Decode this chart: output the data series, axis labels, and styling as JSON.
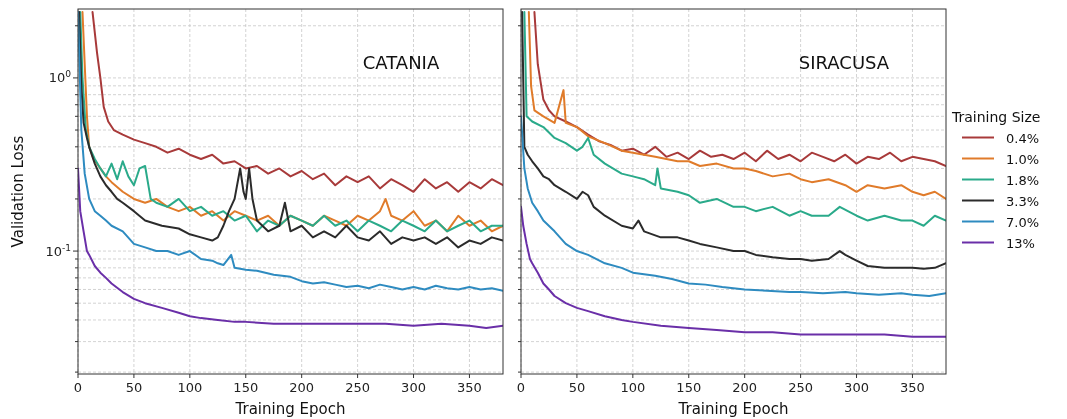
{
  "chart_data": [
    {
      "type": "line",
      "title": "CATANIA",
      "xlabel": "Training Epoch",
      "ylabel": "Validation Loss",
      "log": "y",
      "grid": true,
      "line_style": "solid",
      "xlim": [
        0,
        380
      ],
      "xticks": [
        0,
        50,
        100,
        150,
        200,
        250,
        300,
        350
      ],
      "ylim": [
        0.0195,
        2.5
      ],
      "yticks": [
        {
          "value": 0.02,
          "label": null
        },
        {
          "value": 0.03,
          "label": null
        },
        {
          "value": 0.04,
          "label": null
        },
        {
          "value": 0.05,
          "label": null
        },
        {
          "value": 0.06,
          "label": null
        },
        {
          "value": 0.07,
          "label": null
        },
        {
          "value": 0.08,
          "label": null
        },
        {
          "value": 0.09,
          "label": null
        },
        {
          "value": 0.1,
          "label": "10$^{-1}$"
        },
        {
          "value": 0.2,
          "label": null
        },
        {
          "value": 0.3,
          "label": null
        },
        {
          "value": 0.4,
          "label": null
        },
        {
          "value": 0.5,
          "label": null
        },
        {
          "value": 0.6,
          "label": null
        },
        {
          "value": 0.7,
          "label": null
        },
        {
          "value": 0.8,
          "label": null
        },
        {
          "value": 0.9,
          "label": null
        },
        {
          "value": 1,
          "label": "10$^{0}$"
        },
        {
          "value": 2,
          "label": null
        }
      ],
      "series": [
        {
          "color": "#a83a3a",
          "x": [
            13,
            17,
            20,
            23,
            27,
            32,
            40,
            50,
            60,
            70,
            80,
            90,
            100,
            110,
            120,
            130,
            140,
            150,
            160,
            170,
            180,
            190,
            200,
            210,
            220,
            230,
            240,
            250,
            260,
            270,
            280,
            290,
            300,
            310,
            320,
            330,
            340,
            350,
            360,
            370,
            380
          ],
          "values": [
            2.4,
            1.4,
            1.0,
            0.68,
            0.56,
            0.5,
            0.47,
            0.44,
            0.42,
            0.4,
            0.37,
            0.39,
            0.36,
            0.34,
            0.36,
            0.32,
            0.33,
            0.3,
            0.31,
            0.28,
            0.3,
            0.27,
            0.29,
            0.26,
            0.28,
            0.24,
            0.27,
            0.25,
            0.27,
            0.23,
            0.26,
            0.24,
            0.22,
            0.26,
            0.23,
            0.25,
            0.22,
            0.25,
            0.23,
            0.26,
            0.24
          ]
        },
        {
          "color": "#e07b2a",
          "x": [
            4,
            6,
            8,
            10,
            14,
            20,
            25,
            30,
            40,
            50,
            60,
            70,
            80,
            90,
            100,
            110,
            120,
            130,
            140,
            150,
            160,
            170,
            180,
            190,
            200,
            210,
            220,
            230,
            240,
            250,
            260,
            270,
            275,
            280,
            290,
            300,
            310,
            320,
            330,
            340,
            350,
            360,
            370,
            380
          ],
          "values": [
            2.4,
            1.2,
            0.6,
            0.4,
            0.34,
            0.3,
            0.27,
            0.25,
            0.22,
            0.2,
            0.19,
            0.2,
            0.18,
            0.17,
            0.18,
            0.16,
            0.17,
            0.15,
            0.17,
            0.16,
            0.15,
            0.16,
            0.14,
            0.16,
            0.15,
            0.14,
            0.16,
            0.15,
            0.14,
            0.16,
            0.15,
            0.17,
            0.2,
            0.16,
            0.15,
            0.17,
            0.14,
            0.15,
            0.13,
            0.16,
            0.14,
            0.15,
            0.13,
            0.14
          ]
        },
        {
          "color": "#2aaa8a",
          "x": [
            2,
            4,
            7,
            10,
            15,
            20,
            25,
            30,
            35,
            40,
            45,
            50,
            55,
            60,
            65,
            70,
            80,
            90,
            100,
            110,
            120,
            130,
            140,
            150,
            160,
            170,
            180,
            190,
            200,
            210,
            220,
            230,
            240,
            250,
            260,
            270,
            280,
            290,
            300,
            310,
            320,
            330,
            340,
            350,
            360,
            370,
            380
          ],
          "values": [
            2.4,
            1.0,
            0.5,
            0.4,
            0.34,
            0.3,
            0.27,
            0.32,
            0.26,
            0.33,
            0.27,
            0.24,
            0.3,
            0.31,
            0.2,
            0.19,
            0.18,
            0.2,
            0.17,
            0.18,
            0.16,
            0.17,
            0.15,
            0.16,
            0.13,
            0.15,
            0.14,
            0.16,
            0.15,
            0.14,
            0.16,
            0.14,
            0.15,
            0.13,
            0.15,
            0.14,
            0.13,
            0.15,
            0.14,
            0.13,
            0.15,
            0.13,
            0.14,
            0.15,
            0.13,
            0.14,
            0.14
          ]
        },
        {
          "color": "#2b2b2b",
          "x": [
            1,
            3,
            5,
            8,
            10,
            15,
            20,
            25,
            30,
            35,
            40,
            50,
            60,
            75,
            90,
            100,
            110,
            120,
            125,
            130,
            135,
            140,
            145,
            148,
            150,
            153,
            156,
            160,
            170,
            180,
            185,
            190,
            200,
            210,
            220,
            230,
            240,
            250,
            260,
            270,
            280,
            290,
            300,
            310,
            320,
            330,
            340,
            350,
            360,
            370,
            380
          ],
          "values": [
            2.4,
            0.9,
            0.55,
            0.45,
            0.4,
            0.32,
            0.27,
            0.24,
            0.22,
            0.2,
            0.19,
            0.17,
            0.15,
            0.14,
            0.135,
            0.125,
            0.12,
            0.115,
            0.12,
            0.14,
            0.17,
            0.2,
            0.3,
            0.22,
            0.2,
            0.3,
            0.2,
            0.15,
            0.13,
            0.14,
            0.19,
            0.13,
            0.14,
            0.12,
            0.13,
            0.12,
            0.14,
            0.12,
            0.115,
            0.13,
            0.11,
            0.12,
            0.115,
            0.12,
            0.11,
            0.12,
            0.105,
            0.115,
            0.11,
            0.12,
            0.115
          ]
        },
        {
          "color": "#2e8bc0",
          "x": [
            0,
            3,
            6,
            10,
            15,
            20,
            25,
            30,
            40,
            50,
            60,
            70,
            80,
            90,
            100,
            110,
            120,
            125,
            130,
            137,
            140,
            150,
            160,
            175,
            190,
            200,
            210,
            220,
            230,
            240,
            250,
            260,
            270,
            280,
            290,
            300,
            310,
            320,
            330,
            340,
            350,
            360,
            370,
            380
          ],
          "values": [
            2.4,
            0.5,
            0.28,
            0.2,
            0.17,
            0.16,
            0.15,
            0.14,
            0.13,
            0.11,
            0.105,
            0.1,
            0.1,
            0.095,
            0.1,
            0.09,
            0.088,
            0.085,
            0.083,
            0.095,
            0.08,
            0.078,
            0.077,
            0.073,
            0.071,
            0.067,
            0.065,
            0.066,
            0.064,
            0.062,
            0.063,
            0.061,
            0.064,
            0.062,
            0.06,
            0.062,
            0.06,
            0.063,
            0.061,
            0.06,
            0.062,
            0.06,
            0.061,
            0.059
          ]
        },
        {
          "color": "#6a2fa8",
          "x": [
            0,
            2,
            5,
            8,
            10,
            15,
            20,
            25,
            30,
            40,
            50,
            60,
            75,
            90,
            100,
            110,
            125,
            140,
            150,
            175,
            200,
            225,
            250,
            275,
            300,
            325,
            350,
            365,
            380
          ],
          "values": [
            0.3,
            0.17,
            0.13,
            0.1,
            0.095,
            0.082,
            0.075,
            0.07,
            0.065,
            0.058,
            0.053,
            0.05,
            0.047,
            0.044,
            0.042,
            0.041,
            0.04,
            0.039,
            0.039,
            0.038,
            0.038,
            0.038,
            0.038,
            0.038,
            0.037,
            0.038,
            0.037,
            0.036,
            0.037
          ]
        }
      ]
    },
    {
      "type": "line",
      "title": "SIRACUSA",
      "xlabel": "Training Epoch",
      "log": "y",
      "grid": true,
      "line_style": "solid",
      "tick_labels": "x",
      "legend": "right",
      "legend_title": "Training Size",
      "xlim": [
        0,
        380
      ],
      "xticks": [
        0,
        50,
        100,
        150,
        200,
        250,
        300,
        350
      ],
      "ylim": [
        0.0195,
        2.5
      ],
      "yticks": [
        {
          "value": 0.02,
          "label": null
        },
        {
          "value": 0.03,
          "label": null
        },
        {
          "value": 0.04,
          "label": null
        },
        {
          "value": 0.05,
          "label": null
        },
        {
          "value": 0.06,
          "label": null
        },
        {
          "value": 0.07,
          "label": null
        },
        {
          "value": 0.08,
          "label": null
        },
        {
          "value": 0.09,
          "label": null
        },
        {
          "value": 0.1,
          "label": null
        },
        {
          "value": 0.2,
          "label": null
        },
        {
          "value": 0.3,
          "label": null
        },
        {
          "value": 0.4,
          "label": null
        },
        {
          "value": 0.5,
          "label": null
        },
        {
          "value": 0.6,
          "label": null
        },
        {
          "value": 0.7,
          "label": null
        },
        {
          "value": 0.8,
          "label": null
        },
        {
          "value": 0.9,
          "label": null
        },
        {
          "value": 1,
          "label": null
        },
        {
          "value": 2,
          "label": null
        }
      ],
      "series": [
        {
          "name": "0.4%",
          "color": "#a83a3a",
          "x": [
            12,
            15,
            20,
            25,
            30,
            40,
            50,
            60,
            70,
            80,
            90,
            100,
            110,
            120,
            130,
            140,
            150,
            160,
            170,
            180,
            190,
            200,
            210,
            220,
            230,
            240,
            250,
            260,
            270,
            280,
            290,
            300,
            310,
            320,
            330,
            340,
            350,
            360,
            370,
            380
          ],
          "values": [
            2.4,
            1.2,
            0.75,
            0.65,
            0.6,
            0.56,
            0.52,
            0.47,
            0.43,
            0.41,
            0.38,
            0.39,
            0.36,
            0.4,
            0.35,
            0.37,
            0.34,
            0.38,
            0.35,
            0.36,
            0.34,
            0.37,
            0.33,
            0.38,
            0.34,
            0.36,
            0.33,
            0.37,
            0.35,
            0.33,
            0.36,
            0.32,
            0.35,
            0.34,
            0.37,
            0.33,
            0.35,
            0.34,
            0.33,
            0.31
          ]
        },
        {
          "name": "1.0%",
          "color": "#e07b2a",
          "x": [
            7,
            9,
            12,
            20,
            30,
            38,
            40,
            50,
            60,
            75,
            90,
            100,
            110,
            120,
            130,
            140,
            150,
            160,
            175,
            190,
            200,
            210,
            225,
            240,
            250,
            260,
            275,
            290,
            300,
            310,
            325,
            340,
            350,
            360,
            370,
            380
          ],
          "values": [
            2.4,
            0.9,
            0.65,
            0.6,
            0.55,
            0.85,
            0.55,
            0.52,
            0.46,
            0.42,
            0.38,
            0.37,
            0.36,
            0.35,
            0.34,
            0.33,
            0.33,
            0.31,
            0.32,
            0.3,
            0.3,
            0.29,
            0.27,
            0.28,
            0.26,
            0.25,
            0.26,
            0.24,
            0.22,
            0.24,
            0.23,
            0.24,
            0.22,
            0.21,
            0.22,
            0.2
          ]
        },
        {
          "name": "1.8%",
          "color": "#2aaa8a",
          "x": [
            3,
            5,
            10,
            20,
            30,
            40,
            50,
            55,
            60,
            65,
            75,
            90,
            100,
            110,
            120,
            122,
            125,
            140,
            150,
            160,
            175,
            190,
            200,
            210,
            225,
            240,
            250,
            260,
            275,
            285,
            300,
            310,
            325,
            340,
            350,
            360,
            370,
            380
          ],
          "values": [
            2.4,
            0.6,
            0.56,
            0.52,
            0.45,
            0.42,
            0.38,
            0.4,
            0.45,
            0.36,
            0.32,
            0.28,
            0.27,
            0.26,
            0.24,
            0.3,
            0.23,
            0.22,
            0.21,
            0.19,
            0.2,
            0.18,
            0.18,
            0.17,
            0.18,
            0.16,
            0.17,
            0.16,
            0.16,
            0.18,
            0.16,
            0.15,
            0.16,
            0.15,
            0.15,
            0.14,
            0.16,
            0.15
          ]
        },
        {
          "name": "3.3%",
          "color": "#2b2b2b",
          "x": [
            1,
            3,
            6,
            10,
            15,
            20,
            25,
            30,
            40,
            50,
            55,
            60,
            65,
            75,
            90,
            100,
            105,
            110,
            125,
            140,
            150,
            160,
            175,
            190,
            200,
            210,
            225,
            240,
            250,
            260,
            275,
            285,
            290,
            300,
            310,
            325,
            340,
            350,
            360,
            370,
            380
          ],
          "values": [
            2.4,
            0.4,
            0.36,
            0.33,
            0.3,
            0.27,
            0.26,
            0.24,
            0.22,
            0.2,
            0.22,
            0.21,
            0.18,
            0.16,
            0.14,
            0.135,
            0.15,
            0.13,
            0.12,
            0.12,
            0.115,
            0.11,
            0.105,
            0.1,
            0.1,
            0.095,
            0.092,
            0.09,
            0.09,
            0.088,
            0.09,
            0.1,
            0.095,
            0.088,
            0.082,
            0.08,
            0.08,
            0.08,
            0.079,
            0.08,
            0.085
          ]
        },
        {
          "name": "7.0%",
          "color": "#2e8bc0",
          "x": [
            0,
            3,
            6,
            10,
            15,
            20,
            30,
            40,
            50,
            60,
            75,
            90,
            100,
            120,
            135,
            150,
            165,
            180,
            200,
            220,
            240,
            250,
            270,
            290,
            300,
            320,
            340,
            350,
            365,
            380
          ],
          "values": [
            0.6,
            0.3,
            0.23,
            0.19,
            0.17,
            0.15,
            0.13,
            0.11,
            0.1,
            0.095,
            0.085,
            0.08,
            0.075,
            0.072,
            0.069,
            0.065,
            0.064,
            0.062,
            0.06,
            0.059,
            0.058,
            0.058,
            0.057,
            0.058,
            0.057,
            0.056,
            0.057,
            0.056,
            0.055,
            0.057
          ]
        },
        {
          "name": "13%",
          "color": "#6a2fa8",
          "x": [
            0,
            2,
            5,
            8,
            10,
            15,
            20,
            25,
            30,
            40,
            50,
            60,
            75,
            90,
            100,
            125,
            150,
            175,
            200,
            225,
            250,
            275,
            300,
            325,
            350,
            365,
            380
          ],
          "values": [
            0.18,
            0.14,
            0.11,
            0.09,
            0.085,
            0.075,
            0.065,
            0.06,
            0.055,
            0.05,
            0.047,
            0.045,
            0.042,
            0.04,
            0.039,
            0.037,
            0.036,
            0.035,
            0.034,
            0.034,
            0.033,
            0.033,
            0.033,
            0.033,
            0.032,
            0.032,
            0.032
          ]
        }
      ]
    }
  ]
}
